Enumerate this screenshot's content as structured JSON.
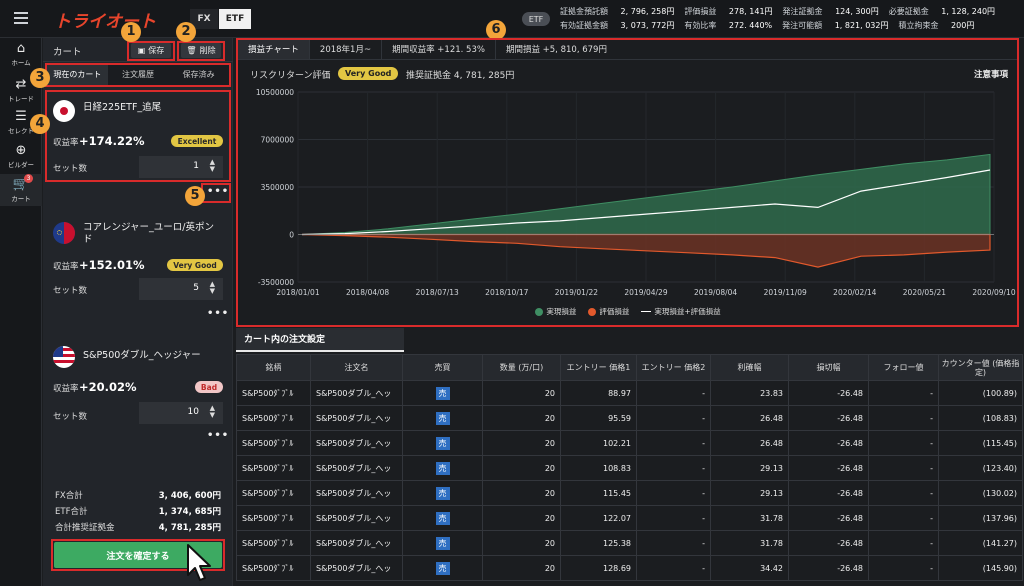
{
  "header": {
    "logo": "トライオート",
    "mode_fx": "FX",
    "mode_etf": "ETF",
    "market_badge": "ETF",
    "stats_row1": [
      {
        "label": "証拠金預託額",
        "value": "2, 796, 258円"
      },
      {
        "label": "評価損益",
        "value": "278, 141円"
      },
      {
        "label": "発注証拠金",
        "value": "124, 300円"
      },
      {
        "label": "必要証拠金",
        "value": "1, 128, 240円"
      }
    ],
    "stats_row2": [
      {
        "label": "有効証拠金額",
        "value": "3, 073, 772円"
      },
      {
        "label": "有効比率",
        "value": "272. 440%"
      },
      {
        "label": "発注可能額",
        "value": "1, 821, 032円"
      },
      {
        "label": "積立拘束金",
        "value": "200円"
      }
    ]
  },
  "rail": {
    "items": [
      {
        "label": "ホーム",
        "icon": "home-icon"
      },
      {
        "label": "トレード",
        "icon": "trade-icon"
      },
      {
        "label": "セレクト",
        "icon": "select-icon"
      },
      {
        "label": "ビルダー",
        "icon": "builder-icon"
      },
      {
        "label": "カート",
        "icon": "cart-icon",
        "badge": "3"
      }
    ]
  },
  "cart": {
    "title": "カート",
    "save_label": "保存",
    "delete_label": "削除",
    "tabs": [
      "現在のカート",
      "注文履歴",
      "保存済み"
    ],
    "items": [
      {
        "name": "日経225ETF_追尾",
        "rate_label": "収益率",
        "rate": "+174.22%",
        "grade": "Excellent",
        "set_label": "セット数",
        "sets": "1"
      },
      {
        "name": "コアレンジャー_ユーロ/英ポンド",
        "rate_label": "収益率",
        "rate": "+152.01%",
        "grade": "Very Good",
        "set_label": "セット数",
        "sets": "5"
      },
      {
        "name": "S&P500ダブル_ヘッジャー",
        "rate_label": "収益率",
        "rate": "+20.02%",
        "grade": "Bad",
        "set_label": "セット数",
        "sets": "10"
      }
    ],
    "more": "•••",
    "totals": [
      {
        "label": "FX合計",
        "value": "3, 406, 600円"
      },
      {
        "label": "ETF合計",
        "value": "1, 374, 685円"
      },
      {
        "label": "合計推奨証拠金",
        "value": "4, 781, 285円"
      }
    ],
    "confirm_label": "注文を確定する"
  },
  "markers": [
    "1",
    "2",
    "3",
    "4",
    "5",
    "6"
  ],
  "chart_panel": {
    "tabs": [
      "損益チャート",
      "2018年1月~",
      "期間収益率 +121. 53%",
      "期間損益 +5, 810, 679円"
    ],
    "risk_label": "リスクリターン評価",
    "risk_grade": "Very Good",
    "recommended": "推奨証拠金 4, 781, 285円",
    "notice": "注意事項"
  },
  "chart_data": {
    "type": "area",
    "x_ticks": [
      "2018/01/01",
      "2018/04/08",
      "2018/07/13",
      "2018/10/17",
      "2019/01/22",
      "2019/04/29",
      "2019/08/04",
      "2019/11/09",
      "2020/02/14",
      "2020/05/21",
      "2020/09/10"
    ],
    "y_ticks": [
      "10500000",
      "7000000",
      "3500000",
      "0",
      "-3500000"
    ],
    "ylim": [
      -3500000,
      10500000
    ],
    "legend_position": "bottom",
    "series": [
      {
        "name": "実現損益",
        "color": "#3f8e63",
        "values": [
          0,
          150000,
          420000,
          780000,
          1150000,
          1500000,
          1900000,
          2300000,
          2700000,
          3100000,
          3500000,
          3950000,
          4400000,
          4800000,
          5200000,
          5500000,
          5900000
        ]
      },
      {
        "name": "評価損益",
        "color": "#e2592c",
        "values": [
          0,
          -80000,
          -200000,
          -350000,
          -520000,
          -650000,
          -900000,
          -1050000,
          -1200000,
          -1350000,
          -1500000,
          -1700000,
          -2400000,
          -1600000,
          -1500000,
          -1300000,
          -1150000
        ]
      },
      {
        "name": "実現損益+評価損益",
        "color": "#ffffff",
        "values": [
          0,
          70000,
          220000,
          430000,
          630000,
          850000,
          1000000,
          1250000,
          1500000,
          1750000,
          2000000,
          2250000,
          2000000,
          3200000,
          3700000,
          4200000,
          4750000
        ]
      }
    ]
  },
  "orders": {
    "title": "カート内の注文設定",
    "columns": [
      "銘柄",
      "注文名",
      "売買",
      "数量 (万/口)",
      "エントリー 価格1",
      "エントリー 価格2",
      "利確幅",
      "損切幅",
      "フォロー値",
      "カウンター値 (価格指定)"
    ],
    "rows": [
      {
        "symbol": "S&P500ﾀﾞﾌﾞﾙ",
        "name": "S&P500ダブル_へッ",
        "side": "売",
        "qty": "20",
        "entry1": "88.97",
        "entry2": "-",
        "tp": "23.83",
        "sl": "-26.48",
        "follow": "-",
        "counter": "(100.89)"
      },
      {
        "symbol": "S&P500ﾀﾞﾌﾞﾙ",
        "name": "S&P500ダブル_へッ",
        "side": "売",
        "qty": "20",
        "entry1": "95.59",
        "entry2": "-",
        "tp": "26.48",
        "sl": "-26.48",
        "follow": "-",
        "counter": "(108.83)"
      },
      {
        "symbol": "S&P500ﾀﾞﾌﾞﾙ",
        "name": "S&P500ダブル_へッ",
        "side": "売",
        "qty": "20",
        "entry1": "102.21",
        "entry2": "-",
        "tp": "26.48",
        "sl": "-26.48",
        "follow": "-",
        "counter": "(115.45)"
      },
      {
        "symbol": "S&P500ﾀﾞﾌﾞﾙ",
        "name": "S&P500ダブル_へッ",
        "side": "売",
        "qty": "20",
        "entry1": "108.83",
        "entry2": "-",
        "tp": "29.13",
        "sl": "-26.48",
        "follow": "-",
        "counter": "(123.40)"
      },
      {
        "symbol": "S&P500ﾀﾞﾌﾞﾙ",
        "name": "S&P500ダブル_へッ",
        "side": "売",
        "qty": "20",
        "entry1": "115.45",
        "entry2": "-",
        "tp": "29.13",
        "sl": "-26.48",
        "follow": "-",
        "counter": "(130.02)"
      },
      {
        "symbol": "S&P500ﾀﾞﾌﾞﾙ",
        "name": "S&P500ダブル_へッ",
        "side": "売",
        "qty": "20",
        "entry1": "122.07",
        "entry2": "-",
        "tp": "31.78",
        "sl": "-26.48",
        "follow": "-",
        "counter": "(137.96)"
      },
      {
        "symbol": "S&P500ﾀﾞﾌﾞﾙ",
        "name": "S&P500ダブル_へッ",
        "side": "売",
        "qty": "20",
        "entry1": "125.38",
        "entry2": "-",
        "tp": "31.78",
        "sl": "-26.48",
        "follow": "-",
        "counter": "(141.27)"
      },
      {
        "symbol": "S&P500ﾀﾞﾌﾞﾙ",
        "name": "S&P500ダブル_へッ",
        "side": "売",
        "qty": "20",
        "entry1": "128.69",
        "entry2": "-",
        "tp": "34.42",
        "sl": "-26.48",
        "follow": "-",
        "counter": "(145.90)"
      }
    ]
  }
}
